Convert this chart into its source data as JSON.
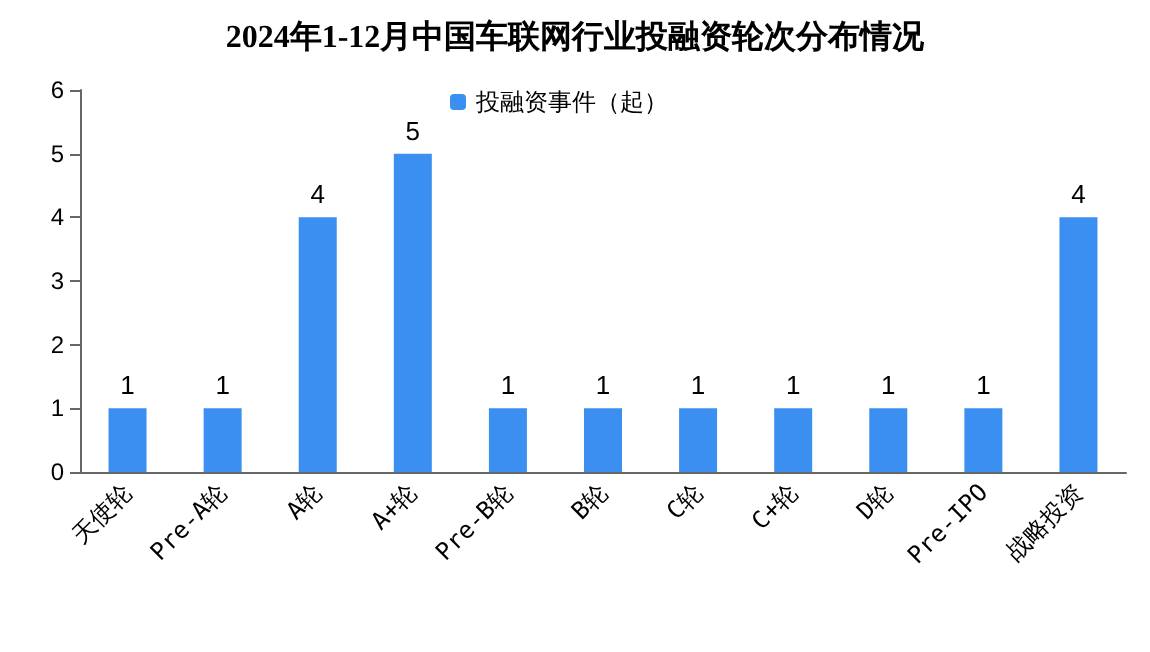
{
  "chart_data": {
    "type": "bar",
    "title": "2024年1-12月中国车联网行业投融资轮次分布情况",
    "categories": [
      "天使轮",
      "Pre-A轮",
      "A轮",
      "A+轮",
      "Pre-B轮",
      "B轮",
      "C轮",
      "C+轮",
      "D轮",
      "Pre-IPO",
      "战略投资"
    ],
    "series": [
      {
        "name": "投融资事件（起）",
        "color": "#3a8ff0",
        "values": [
          1,
          1,
          4,
          5,
          1,
          1,
          1,
          1,
          1,
          1,
          4
        ]
      }
    ],
    "ylim": [
      0,
      6
    ],
    "yticks": [
      0,
      1,
      2,
      3,
      4,
      5,
      6
    ],
    "grid": false,
    "legend": "top",
    "data_labels": true
  }
}
